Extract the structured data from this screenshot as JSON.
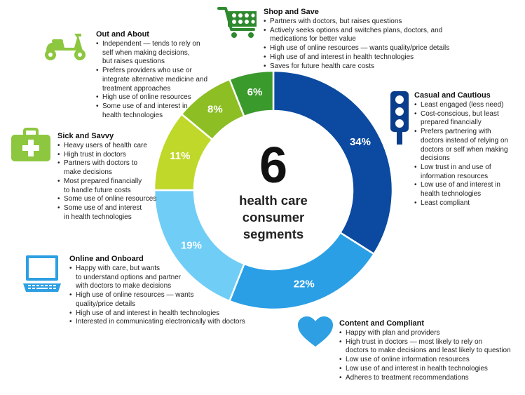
{
  "colors": {
    "dark_green": "#3a9a2c",
    "green": "#8dbf24",
    "lime": "#c0d829",
    "light_blue": "#6fcdf6",
    "mid_blue": "#2a9fe5",
    "dark_blue": "#0b4aa0",
    "icon_green": "#8dc63f",
    "icon_blue": "#2d9fe2",
    "icon_dark_green": "#2e8a2e",
    "icon_navy": "#0a3d8c"
  },
  "center": {
    "number": "6",
    "caption": "health care\nconsumer\nsegments"
  },
  "chart_data": {
    "type": "pie",
    "donut": true,
    "categories": [
      "Casual and Cautious",
      "Content and Compliant",
      "Online and Onboard",
      "Sick and Savvy",
      "Out and About",
      "Shop and Save"
    ],
    "values": [
      34,
      22,
      19,
      11,
      8,
      6
    ],
    "labels": [
      "34%",
      "22%",
      "19%",
      "11%",
      "8%",
      "6%"
    ],
    "colors": [
      "#0b4aa0",
      "#2a9fe5",
      "#6fcdf6",
      "#c0d829",
      "#8dbf24",
      "#3a9a2c"
    ]
  },
  "segments": {
    "shop_and_save": {
      "icon": "shopping-cart-icon",
      "title": "Shop and Save",
      "bullets": [
        "Partners with doctors, but raises questions",
        "Actively seeks options and switches plans, doctors, and\nmedications for better value",
        "High use of online resources — wants quality/price details",
        "High use of and interest in health technologies",
        "Saves for future health care costs"
      ]
    },
    "out_and_about": {
      "icon": "scooter-icon",
      "title": "Out and About",
      "bullets": [
        "Independent — tends to rely on\nself when making decisions,\nbut raises questions",
        "Prefers providers who use or\nintegrate alternative medicine and\ntreatment approaches",
        "High use of online resources",
        "Some use of and interest in\nhealth technologies"
      ]
    },
    "casual_and_cautious": {
      "icon": "traffic-light-icon",
      "title": "Casual and Cautious",
      "bullets": [
        "Least engaged (less need)",
        "Cost-conscious, but least\nprepared financially",
        "Prefers partnering with\ndoctors instead of relying on\ndoctors or self when making\ndecisions",
        "Low trust in and use of\ninformation resources",
        "Low use of and interest in\nhealth technologies",
        "Least compliant"
      ]
    },
    "sick_and_savvy": {
      "icon": "medical-kit-icon",
      "title": "Sick and Savvy",
      "bullets": [
        "Heavy users of health care",
        "High trust in doctors",
        "Partners with doctors to\nmake decisions",
        "Most prepared financially\nto handle future costs",
        "Some use of online resources",
        "Some use of and interest\nin health technologies"
      ]
    },
    "online_and_onboard": {
      "icon": "laptop-icon",
      "title": "Online and Onboard",
      "bullets": [
        "Happy with care, but wants\nto understand options and partner\nwith doctors to make decisions",
        "High use of online resources — wants\nquality/price details",
        "High use of and interest in health technologies",
        "Interested in communicating electronically with doctors"
      ]
    },
    "content_and_compliant": {
      "icon": "heart-icon",
      "title": "Content and Compliant",
      "bullets": [
        "Happy with plan and providers",
        "High trust in doctors — most likely to rely on\ndoctors to make decisions and least likely to question",
        "Low use of online information resources",
        "Low use of and interest in health technologies",
        "Adheres to treatment recommendations"
      ]
    }
  }
}
